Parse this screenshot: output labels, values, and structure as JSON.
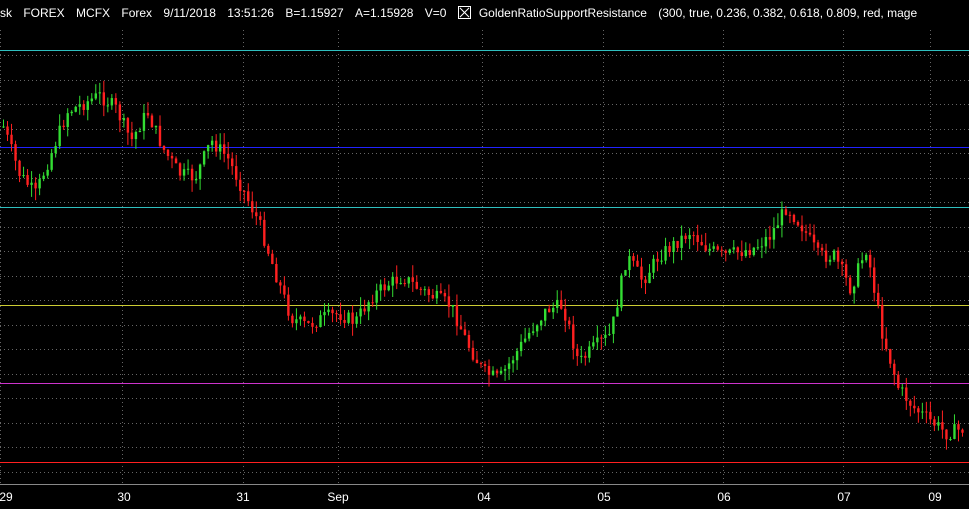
{
  "header": {
    "symbol": "sk",
    "market": "FOREX",
    "feed": "MCFX",
    "type": "Forex",
    "date": "9/11/2018",
    "time": "13:51:26",
    "bid": "B=1.15927",
    "ask": "A=1.15928",
    "volume": "V=0",
    "study_name": "GoldenRatioSupportResistance",
    "study_params": "(300,  true,  0.236,  0.382,  0.618,  0.809,  red,  mage"
  },
  "chart_data": {
    "type": "candlestick",
    "x_tick_labels": [
      "29",
      "30",
      "31",
      "Sep",
      "04",
      "05",
      "06",
      "07",
      "09"
    ],
    "colors": {
      "up": "#33dd33",
      "down": "#ff2020",
      "background": "#000000",
      "grid": "#666666"
    },
    "levels": [
      {
        "fraction": 0.0,
        "color": "#2fbfbf"
      },
      {
        "fraction": 0.236,
        "color": "#2222ff"
      },
      {
        "fraction": 0.382,
        "color": "#2fbfbf"
      },
      {
        "fraction": 0.618,
        "color": "#cccc33"
      },
      {
        "fraction": 0.809,
        "color": "#cc33cc"
      },
      {
        "fraction": 1.0,
        "color": "#ff2020"
      }
    ],
    "close_path": [
      0.186,
      0.3,
      0.35,
      0.25,
      0.15,
      0.13,
      0.11,
      0.14,
      0.22,
      0.15,
      0.24,
      0.3,
      0.31,
      0.22,
      0.26,
      0.34,
      0.42,
      0.54,
      0.65,
      0.67,
      0.65,
      0.64,
      0.66,
      0.6,
      0.57,
      0.55,
      0.58,
      0.6,
      0.62,
      0.71,
      0.78,
      0.8,
      0.74,
      0.68,
      0.63,
      0.62,
      0.76,
      0.72,
      0.69,
      0.5,
      0.56,
      0.5,
      0.47,
      0.44,
      0.48,
      0.5,
      0.49,
      0.48,
      0.45,
      0.38,
      0.43,
      0.5,
      0.5,
      0.58,
      0.48,
      0.69,
      0.82,
      0.87,
      0.9,
      0.93,
      0.92
    ]
  }
}
